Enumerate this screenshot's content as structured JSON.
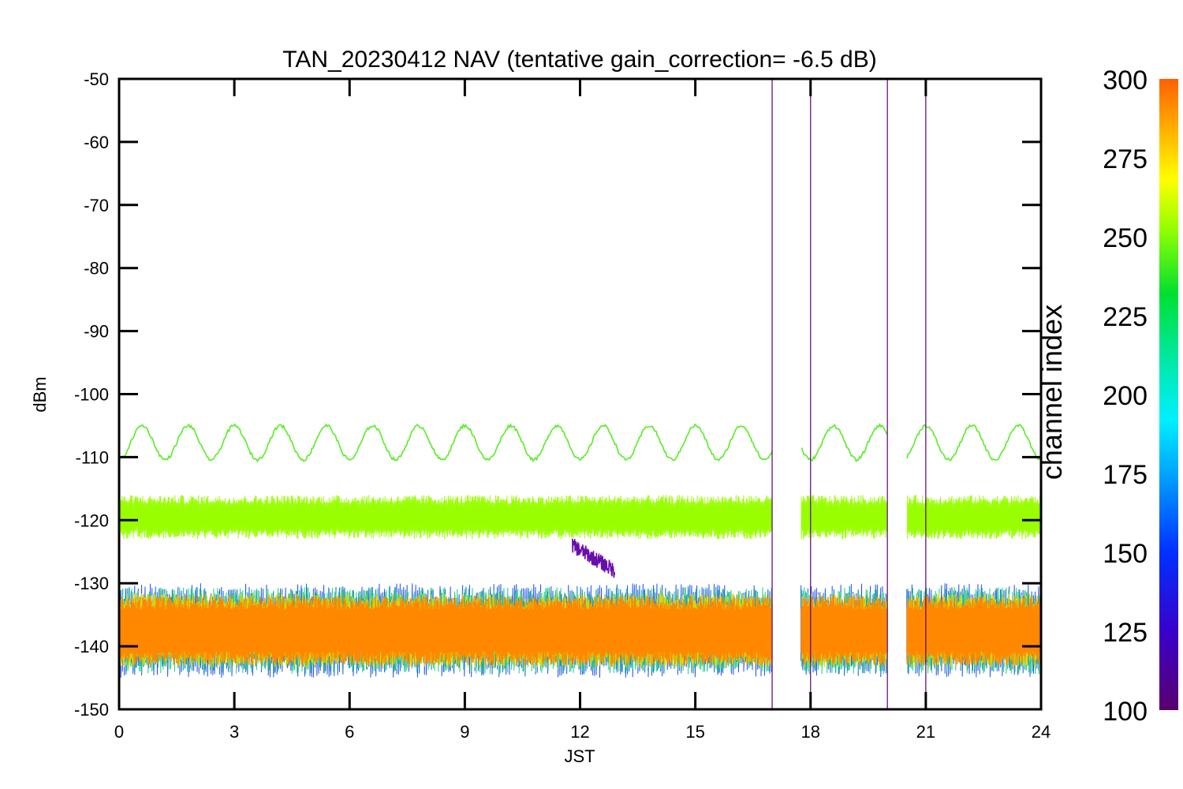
{
  "chart_data": {
    "type": "line",
    "title": "TAN_20230412 NAV (tentative gain_correction= -6.5 dB)",
    "xlabel": "JST",
    "ylabel": "dBm",
    "xlim": [
      0,
      24
    ],
    "ylim": [
      -150,
      -50
    ],
    "x_ticks": [
      "0",
      "3",
      "6",
      "9",
      "12",
      "15",
      "18",
      "21",
      "24"
    ],
    "y_ticks": [
      "-50",
      "-60",
      "-70",
      "-80",
      "-90",
      "-100",
      "-110",
      "-120",
      "-130",
      "-140",
      "-150"
    ],
    "grid": false,
    "legend": "none",
    "colorbar": {
      "label": "channel index",
      "range": [
        100,
        300
      ],
      "ticks": [
        "300",
        "275",
        "250",
        "225",
        "200",
        "175",
        "150",
        "125",
        "100"
      ]
    },
    "data_gaps_jst": [
      [
        17.0,
        17.75
      ],
      [
        20.0,
        20.5
      ]
    ],
    "spike_times_jst": [
      17.0,
      18.0,
      20.0,
      21.0
    ],
    "series": [
      {
        "channel_index": 240,
        "description_values": "sinusoid between about -110 and -105 dBm, period about 1.2 h",
        "mean": -107.7,
        "amplitude": 2.7,
        "period_h": 1.2,
        "color": "#55ee22"
      },
      {
        "channel_index": 260,
        "mean": -119.5,
        "spread": 3.5,
        "color": "#99ff00"
      },
      {
        "channel_index": 115,
        "event": {
          "x_start": 11.8,
          "x_end": 12.9,
          "y_start": -124,
          "y_end": -128
        },
        "color": "#6a0dad"
      },
      {
        "channel_index": 180,
        "mean": -137.5,
        "spread": 7.5,
        "color": "#22cc88"
      },
      {
        "channel_index": 285,
        "mean": -137.5,
        "spread": 5.5,
        "color": "#ff8800"
      }
    ]
  }
}
